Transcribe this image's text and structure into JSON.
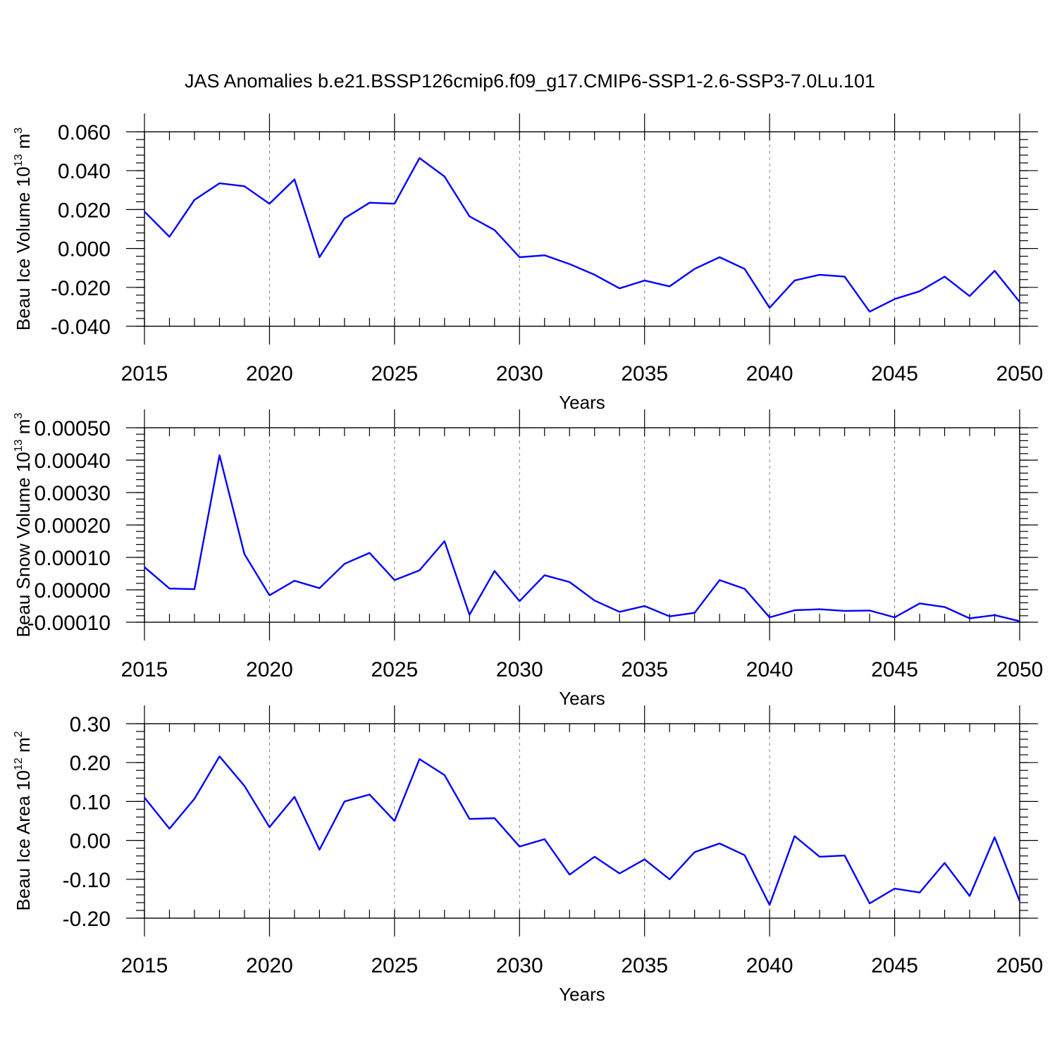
{
  "title": "JAS Anomalies b.e21.BSSP126cmip6.f09_g17.CMIP6-SSP1-2.6-SSP3-7.0Lu.101",
  "line_color": "#0000ff",
  "chart_data": [
    {
      "type": "line",
      "xlabel": "Years",
      "ylabel": {
        "text": "Beau Ice Volume 10",
        "exponent": "13",
        "unit": " m",
        "unit_exponent": "3"
      },
      "xlim": [
        2015,
        2050
      ],
      "ylim": [
        -0.04,
        0.06
      ],
      "x_ticks": [
        2015,
        2020,
        2025,
        2030,
        2035,
        2040,
        2045,
        2050
      ],
      "x_tick_labels": [
        "2015",
        "2020",
        "2025",
        "2030",
        "2035",
        "2040",
        "2045",
        "2050"
      ],
      "y_ticks": [
        -0.04,
        -0.02,
        0.0,
        0.02,
        0.04,
        0.06
      ],
      "y_tick_labels": [
        "-0.040",
        "-0.020",
        "0.000",
        "0.020",
        "0.040",
        "0.060"
      ],
      "x_minor_step": 1,
      "y_minor_step": 0.004,
      "grid": "vertical dashed at labeled years",
      "series": [
        {
          "x": [
            2015,
            2016,
            2017,
            2018,
            2019,
            2020,
            2021,
            2022,
            2023,
            2024,
            2025,
            2026,
            2027,
            2028,
            2029,
            2030,
            2031,
            2032,
            2033,
            2034,
            2035,
            2036,
            2037,
            2038,
            2039,
            2040,
            2041,
            2042,
            2043,
            2044,
            2045,
            2046,
            2047,
            2048,
            2049,
            2050
          ],
          "values": [
            0.019,
            0.006,
            0.025,
            0.0335,
            0.032,
            0.023,
            0.0355,
            -0.0045,
            0.0155,
            0.0235,
            0.023,
            0.0465,
            0.037,
            0.0165,
            0.0095,
            -0.0045,
            -0.0035,
            -0.008,
            -0.0135,
            -0.0205,
            -0.0165,
            -0.0195,
            -0.0105,
            -0.0045,
            -0.0105,
            -0.0305,
            -0.0165,
            -0.0135,
            -0.0145,
            -0.0325,
            -0.026,
            -0.022,
            -0.0145,
            -0.0245,
            -0.0115,
            -0.0275
          ]
        }
      ]
    },
    {
      "type": "line",
      "xlabel": "Years",
      "ylabel": {
        "text": "Beau Snow Volume 10",
        "exponent": "13",
        "unit": " m",
        "unit_exponent": "3"
      },
      "xlim": [
        2015,
        2050
      ],
      "ylim": [
        -0.0001,
        0.0005
      ],
      "x_ticks": [
        2015,
        2020,
        2025,
        2030,
        2035,
        2040,
        2045,
        2050
      ],
      "x_tick_labels": [
        "2015",
        "2020",
        "2025",
        "2030",
        "2035",
        "2040",
        "2045",
        "2050"
      ],
      "y_ticks": [
        -0.0001,
        0.0,
        0.0001,
        0.0002,
        0.0003,
        0.0004,
        0.0005
      ],
      "y_tick_labels": [
        "-0.00010",
        "0.00000",
        "0.00010",
        "0.00020",
        "0.00030",
        "0.00040",
        "0.00050"
      ],
      "x_minor_step": 1,
      "y_minor_step": 2e-05,
      "grid": "vertical dashed at labeled years",
      "series": [
        {
          "x": [
            2015,
            2016,
            2017,
            2018,
            2019,
            2020,
            2021,
            2022,
            2023,
            2024,
            2025,
            2026,
            2027,
            2028,
            2029,
            2030,
            2031,
            2032,
            2033,
            2034,
            2035,
            2036,
            2037,
            2038,
            2039,
            2040,
            2041,
            2042,
            2043,
            2044,
            2045,
            2046,
            2047,
            2048,
            2049,
            2050
          ],
          "values": [
            7e-05,
            4e-06,
            2e-06,
            0.000415,
            0.00011,
            -1.7e-05,
            2.8e-05,
            5e-06,
            8e-05,
            0.000114,
            3e-05,
            6e-05,
            0.00015,
            -7.7e-05,
            5.8e-05,
            -3.5e-05,
            4.5e-05,
            2.4e-05,
            -3.3e-05,
            -6.8e-05,
            -5e-05,
            -8.2e-05,
            -7.1e-05,
            3e-05,
            3e-06,
            -8.5e-05,
            -6.3e-05,
            -6e-05,
            -6.5e-05,
            -6.4e-05,
            -8.5e-05,
            -4.2e-05,
            -5.3e-05,
            -8.8e-05,
            -7.8e-05,
            -9.7e-05
          ]
        }
      ]
    },
    {
      "type": "line",
      "xlabel": "Years",
      "ylabel": {
        "text": "Beau Ice Area 10",
        "exponent": "12",
        "unit": " m",
        "unit_exponent": "2"
      },
      "xlim": [
        2015,
        2050
      ],
      "ylim": [
        -0.2,
        0.3
      ],
      "x_ticks": [
        2015,
        2020,
        2025,
        2030,
        2035,
        2040,
        2045,
        2050
      ],
      "x_tick_labels": [
        "2015",
        "2020",
        "2025",
        "2030",
        "2035",
        "2040",
        "2045",
        "2050"
      ],
      "y_ticks": [
        -0.2,
        -0.1,
        0.0,
        0.1,
        0.2,
        0.3
      ],
      "y_tick_labels": [
        "-0.20",
        "-0.10",
        "0.00",
        "0.10",
        "0.20",
        "0.30"
      ],
      "x_minor_step": 1,
      "y_minor_step": 0.02,
      "grid": "vertical dashed at labeled years",
      "series": [
        {
          "x": [
            2015,
            2016,
            2017,
            2018,
            2019,
            2020,
            2021,
            2022,
            2023,
            2024,
            2025,
            2026,
            2027,
            2028,
            2029,
            2030,
            2031,
            2032,
            2033,
            2034,
            2035,
            2036,
            2037,
            2038,
            2039,
            2040,
            2041,
            2042,
            2043,
            2044,
            2045,
            2046,
            2047,
            2048,
            2049,
            2050
          ],
          "values": [
            0.11,
            0.03,
            0.107,
            0.216,
            0.14,
            0.034,
            0.112,
            -0.024,
            0.1,
            0.118,
            0.05,
            0.209,
            0.168,
            0.055,
            0.057,
            -0.016,
            0.003,
            -0.088,
            -0.042,
            -0.085,
            -0.049,
            -0.1,
            -0.03,
            -0.008,
            -0.038,
            -0.166,
            0.011,
            -0.042,
            -0.039,
            -0.162,
            -0.124,
            -0.134,
            -0.058,
            -0.143,
            0.008,
            -0.156
          ]
        }
      ]
    }
  ]
}
